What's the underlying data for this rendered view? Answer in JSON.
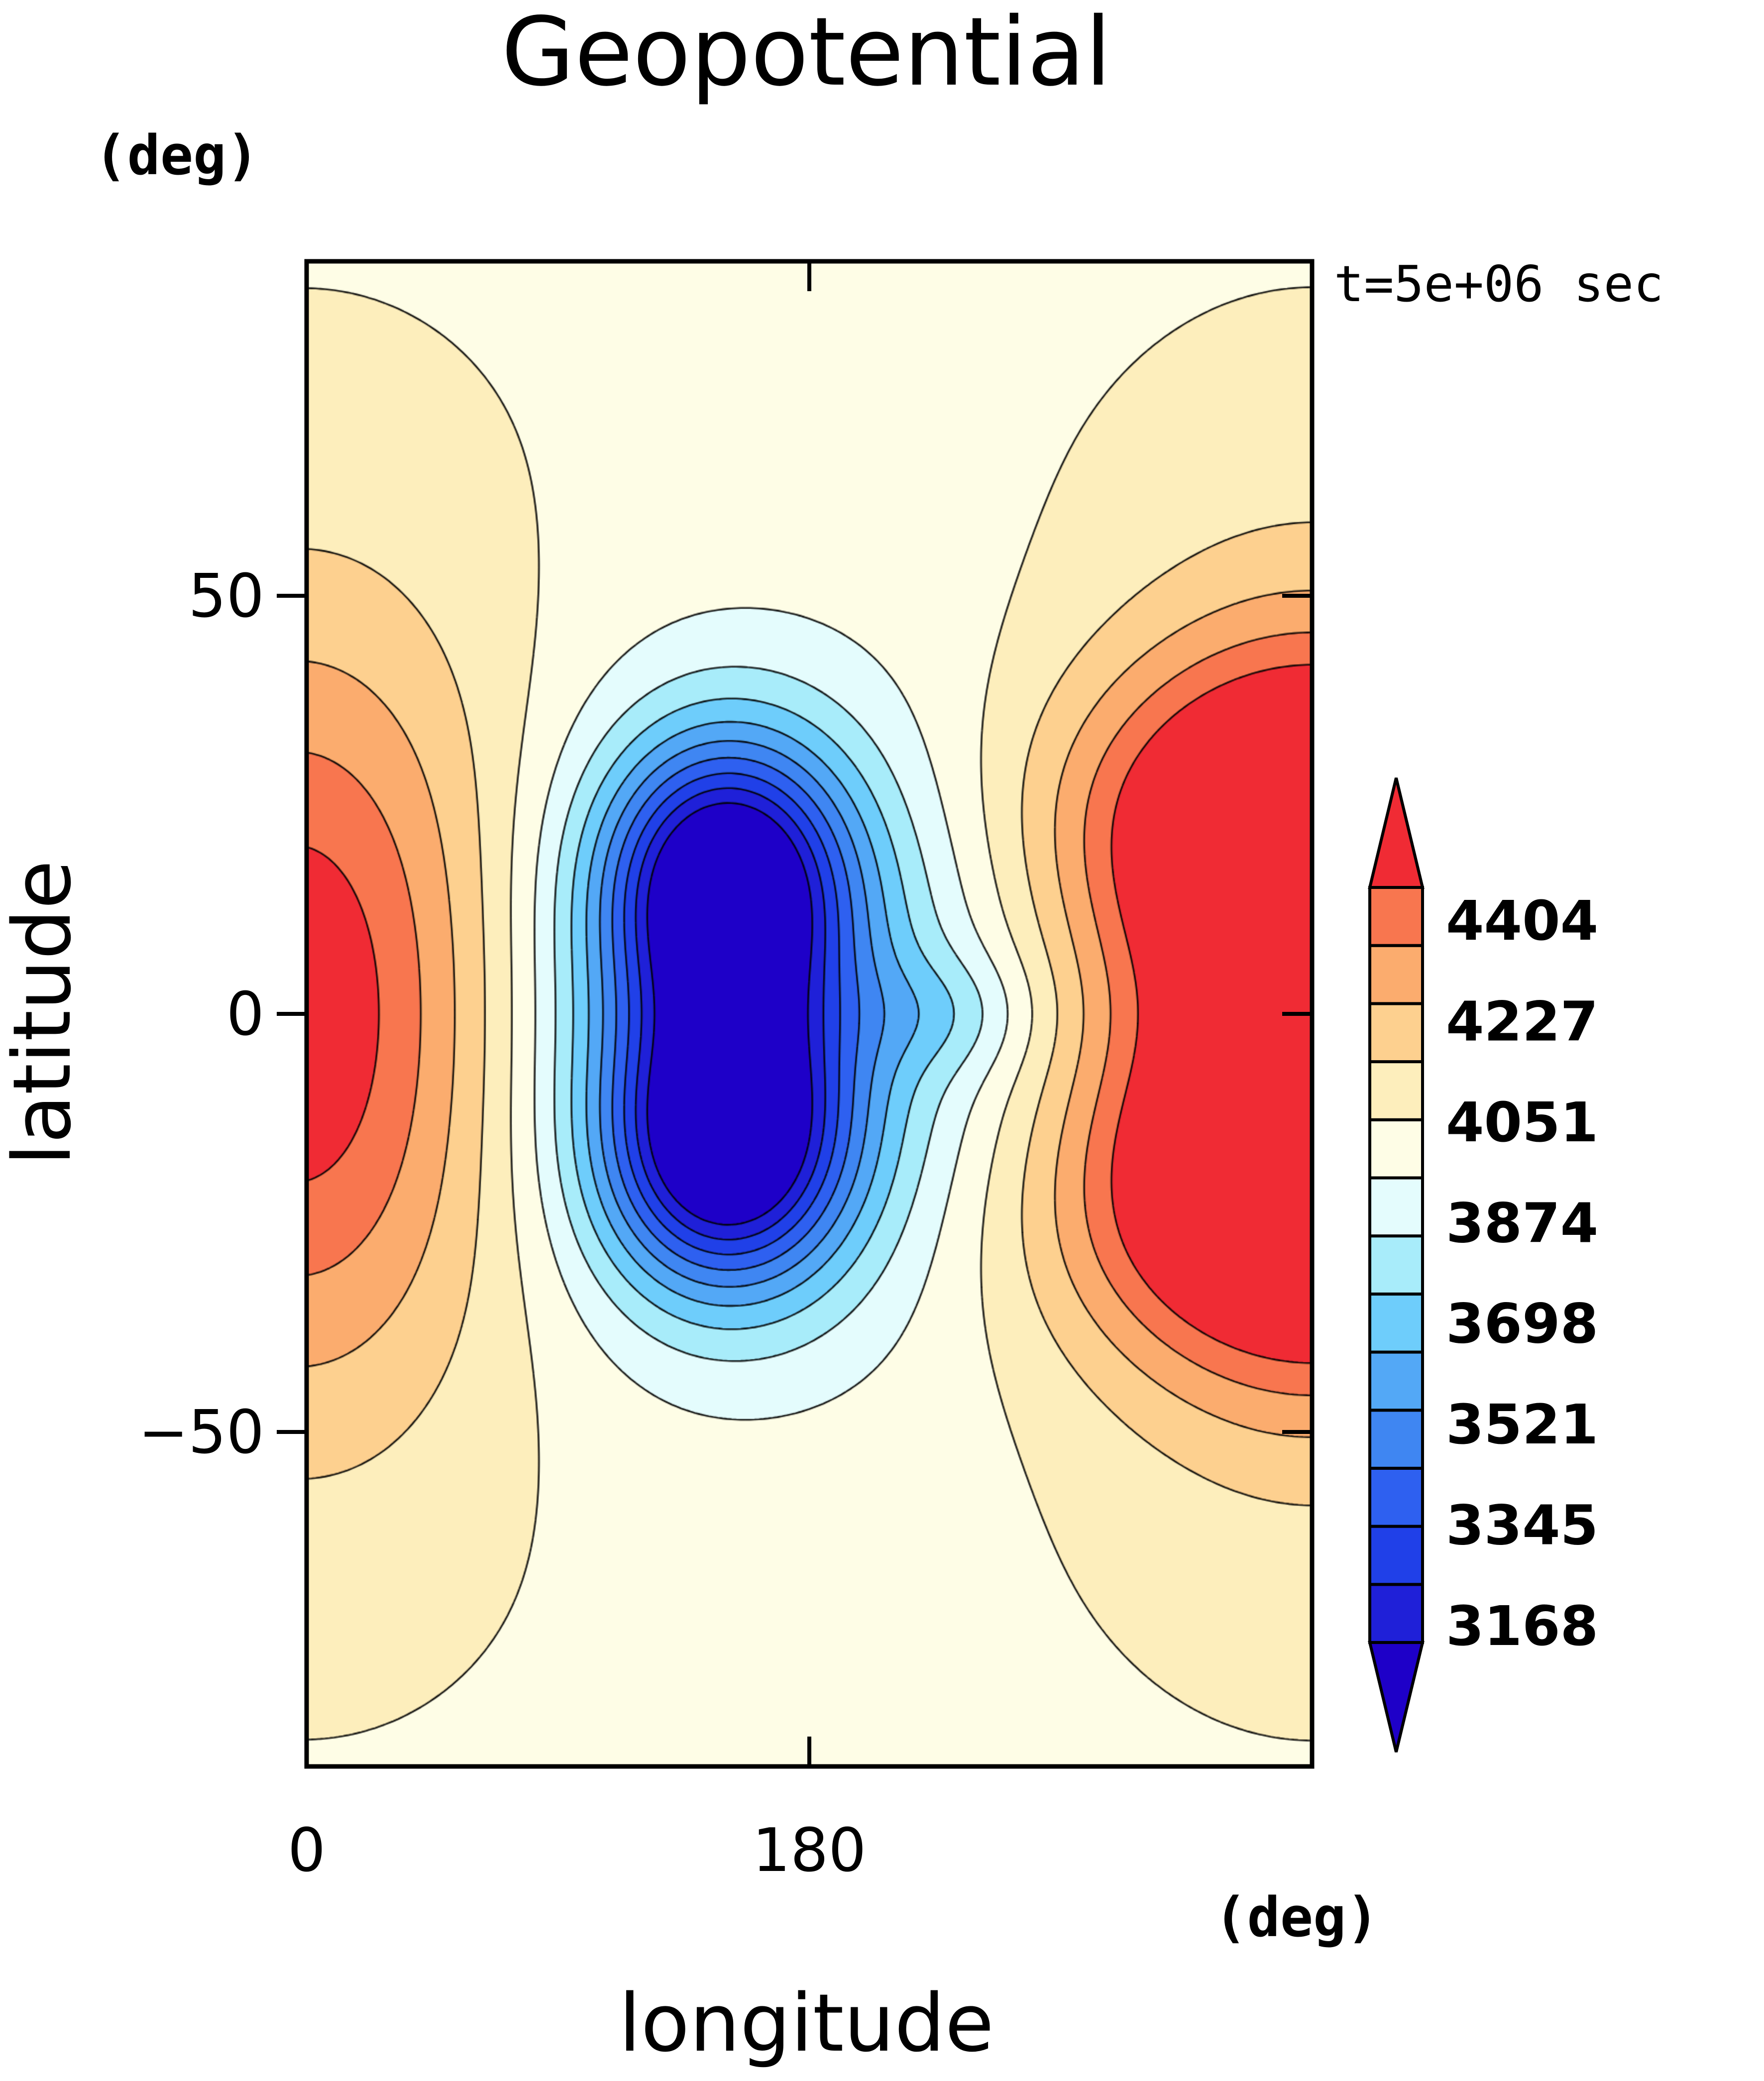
{
  "chart_data": {
    "type": "contour",
    "title": "Geopotential",
    "xlabel": "longitude",
    "ylabel": "latitude",
    "x_unit": "(deg)",
    "y_unit": "(deg)",
    "time_label": "t=5e+06 sec",
    "xlim": [
      0,
      360
    ],
    "ylim": [
      -90,
      90
    ],
    "x_ticks": [
      0,
      180
    ],
    "y_ticks": [
      50,
      0,
      -50
    ],
    "x_tick_labels": [
      "0",
      "180"
    ],
    "y_tick_labels": [
      "50",
      "0",
      "−50"
    ],
    "colorbar": {
      "labels": [
        "4404",
        "4227",
        "4051",
        "3874",
        "3698",
        "3521",
        "3345",
        "3168"
      ],
      "levels": [
        3080,
        3124,
        3168,
        3212,
        3256,
        3301,
        3345,
        3389,
        3433,
        3477,
        3521,
        3565,
        3609,
        3654,
        3698,
        3742,
        3786,
        3830,
        3874,
        3918,
        3962,
        4007,
        4051,
        4095,
        4139,
        4183,
        4227,
        4271,
        4315,
        4360,
        4404,
        4448
      ],
      "colors_low_to_high": [
        "#1e00c8",
        "#1f20d8",
        "#2040e8",
        "#2e60f0",
        "#3f86f2",
        "#53a8f6",
        "#6ecdfb",
        "#a8ecfa",
        "#e4fcfd",
        "#fefde6",
        "#fdeebc",
        "#fdd08f",
        "#fbac6e",
        "#f8764f",
        "#f02b34"
      ],
      "extend": "both"
    },
    "field_features": [
      {
        "kind": "high",
        "lon": 0,
        "lat": 0,
        "approx_value": 4420
      },
      {
        "kind": "high",
        "lon": 360,
        "lat": 22,
        "approx_value": 4420
      },
      {
        "kind": "high",
        "lon": 360,
        "lat": -22,
        "approx_value": 4420
      },
      {
        "kind": "low",
        "lon": 150,
        "lat": 15,
        "approx_value": 3120
      },
      {
        "kind": "low",
        "lon": 150,
        "lat": -15,
        "approx_value": 3120
      },
      {
        "kind": "low",
        "lon": 230,
        "lat": 0,
        "approx_value": 3700
      }
    ]
  }
}
